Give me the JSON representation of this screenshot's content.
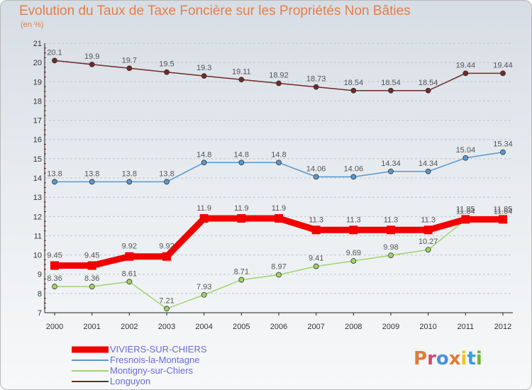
{
  "title": "Evolution du Taux de Taxe Foncière sur les Propriétés Non Bâties",
  "subtitle": "(en %)",
  "logo": {
    "text": "Proxiti",
    "colors": [
      "#e07b39",
      "#d14a6a",
      "#4a90d9",
      "#e07b39",
      "#f5c21b",
      "#3aa0d9",
      "#72b43b"
    ]
  },
  "chart_data": {
    "type": "line",
    "x": [
      "2000",
      "2001",
      "2002",
      "2003",
      "2004",
      "2005",
      "2006",
      "2007",
      "2008",
      "2009",
      "2010",
      "2011",
      "2012"
    ],
    "ylim": [
      7,
      21
    ],
    "yticks": [
      "7",
      "8",
      "9",
      "10",
      "11",
      "12",
      "13",
      "14",
      "15",
      "16",
      "17",
      "18",
      "19",
      "20",
      "21"
    ],
    "grid": "horizontal",
    "legend_position": "bottom-left",
    "series": [
      {
        "name": "VIVIERS-SUR-CHIERS",
        "color": "#f20000",
        "values": [
          9.45,
          9.45,
          9.92,
          9.92,
          11.9,
          11.9,
          11.9,
          11.3,
          11.3,
          11.3,
          11.3,
          11.85,
          11.85
        ],
        "labels": [
          "9.45",
          "9.45",
          "9.92",
          "9.92",
          "11.9",
          "11.9",
          "11.9",
          "11.3",
          "11.3",
          "11.3",
          "11.3",
          "11.85",
          "11.85"
        ]
      },
      {
        "name": "Fresnois-la-Montagne",
        "color": "#5b97cc",
        "values": [
          13.8,
          13.8,
          13.8,
          13.8,
          14.8,
          14.8,
          14.8,
          14.06,
          14.06,
          14.34,
          14.34,
          15.04,
          15.34
        ],
        "labels": [
          "13.8",
          "13.8",
          "13.8",
          "13.8",
          "14.8",
          "14.8",
          "14.8",
          "14.06",
          "14.06",
          "14.34",
          "14.34",
          "15.04",
          "15.34"
        ]
      },
      {
        "name": "Montigny-sur-Chiers",
        "color": "#9fd46b",
        "values": [
          8.36,
          8.36,
          8.61,
          7.21,
          7.93,
          8.71,
          8.97,
          9.41,
          9.69,
          9.98,
          10.27,
          11.84,
          11.84
        ],
        "labels": [
          "8.36",
          "8.36",
          "8.61",
          "7.21",
          "7.93",
          "8.71",
          "8.97",
          "9.41",
          "9.69",
          "9.98",
          "10.27",
          "11.84",
          "11.84"
        ]
      },
      {
        "name": "Longuyon",
        "color": "#702a2a",
        "values": [
          20.1,
          19.9,
          19.7,
          19.5,
          19.3,
          19.11,
          18.92,
          18.73,
          18.54,
          18.54,
          18.54,
          19.44,
          19.44
        ],
        "labels": [
          "20.1",
          "19.9",
          "19.7",
          "19.5",
          "19.3",
          "19.11",
          "18.92",
          "18.73",
          "18.54",
          "18.54",
          "18.54",
          "19.44",
          "19.44"
        ]
      }
    ]
  }
}
